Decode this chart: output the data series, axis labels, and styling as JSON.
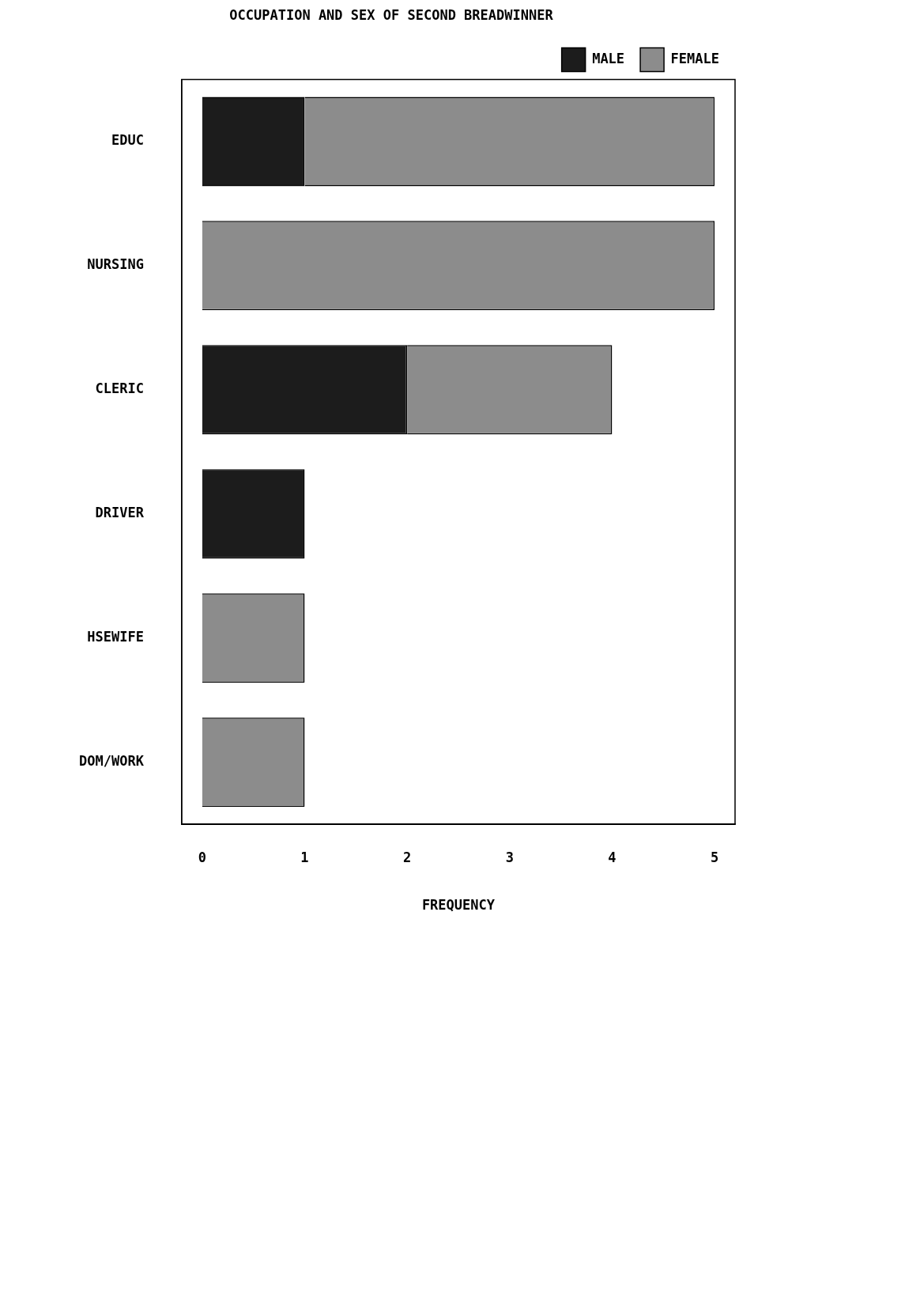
{
  "chart_data": {
    "type": "bar",
    "orientation": "horizontal",
    "stacked": true,
    "title": "OCCUPATION AND SEX OF SECOND BREADWINNER",
    "xlabel": "FREQUENCY",
    "categories": [
      "EDUC",
      "NURSING",
      "CLERIC",
      "DRIVER",
      "HSEWIFE",
      "DOM/WORK"
    ],
    "series": [
      {
        "name": "MALE",
        "color": "#1c1c1c",
        "values": [
          1,
          0,
          2,
          1,
          0,
          0
        ]
      },
      {
        "name": "FEMALE",
        "color": "#8c8c8c",
        "values": [
          4,
          5,
          2,
          0,
          1,
          1
        ]
      }
    ],
    "xlim": [
      -0.2,
      5.2
    ],
    "xticks": [
      0,
      1,
      2,
      3,
      4,
      5
    ],
    "legend": "top right",
    "grid": false
  }
}
